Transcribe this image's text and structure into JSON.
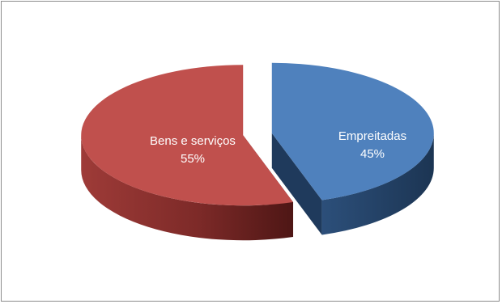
{
  "chart_data": {
    "type": "pie",
    "style": "3d-exploded",
    "legend": "none",
    "slices": [
      {
        "label": "Empreitadas",
        "percent_label": "45%",
        "value": 45,
        "color": "#4f81bd",
        "side_dark": "#1f3a5c"
      },
      {
        "label": "Bens e serviços",
        "percent_label": "55%",
        "value": 55,
        "color": "#c0504d",
        "side_dark": "#5e1d1b"
      }
    ]
  }
}
